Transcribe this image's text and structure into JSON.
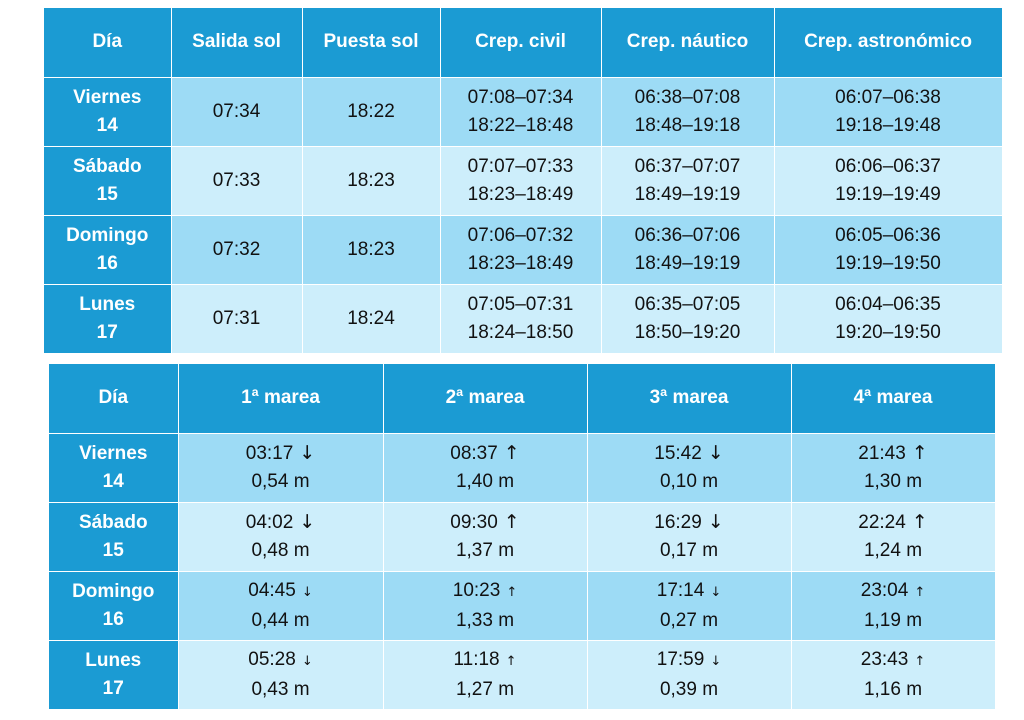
{
  "sun_table": {
    "headers": [
      "Día",
      "Salida sol",
      "Puesta sol",
      "Crep. civil",
      "Crep. náutico",
      "Crep. astronómico"
    ],
    "rows": [
      {
        "day_name": "Viernes",
        "day_num": "14",
        "sunrise": "07:34",
        "sunset": "18:22",
        "civil": [
          "07:08–07:34",
          "18:22–18:48"
        ],
        "nautical": [
          "06:38–07:08",
          "18:48–19:18"
        ],
        "astro": [
          "06:07–06:38",
          "19:18–19:48"
        ]
      },
      {
        "day_name": "Sábado",
        "day_num": "15",
        "sunrise": "07:33",
        "sunset": "18:23",
        "civil": [
          "07:07–07:33",
          "18:23–18:49"
        ],
        "nautical": [
          "06:37–07:07",
          "18:49–19:19"
        ],
        "astro": [
          "06:06–06:37",
          "19:19–19:49"
        ]
      },
      {
        "day_name": "Domingo",
        "day_num": "16",
        "sunrise": "07:32",
        "sunset": "18:23",
        "civil": [
          "07:06–07:32",
          "18:23–18:49"
        ],
        "nautical": [
          "06:36–07:06",
          "18:49–19:19"
        ],
        "astro": [
          "06:05–06:36",
          "19:19–19:50"
        ]
      },
      {
        "day_name": "Lunes",
        "day_num": "17",
        "sunrise": "07:31",
        "sunset": "18:24",
        "civil": [
          "07:05–07:31",
          "18:24–18:50"
        ],
        "nautical": [
          "06:35–07:05",
          "18:50–19:20"
        ],
        "astro": [
          "06:04–06:35",
          "19:20–19:50"
        ]
      }
    ]
  },
  "tide_table": {
    "headers": [
      "Día",
      "1ª marea",
      "2ª marea",
      "3ª marea",
      "4ª marea"
    ],
    "rows": [
      {
        "day_name": "Viernes",
        "day_num": "14",
        "tides": [
          {
            "time": "03:17",
            "arrow": "↓",
            "height": "0,54 m"
          },
          {
            "time": "08:37",
            "arrow": "↑",
            "height": "1,40 m"
          },
          {
            "time": "15:42",
            "arrow": "↓",
            "height": "0,10 m"
          },
          {
            "time": "21:43",
            "arrow": "↑",
            "height": "1,30 m"
          }
        ]
      },
      {
        "day_name": "Sábado",
        "day_num": "15",
        "tides": [
          {
            "time": "04:02",
            "arrow": "↓",
            "height": "0,48 m"
          },
          {
            "time": "09:30",
            "arrow": "↑",
            "height": "1,37 m"
          },
          {
            "time": "16:29",
            "arrow": "↓",
            "height": "0,17 m"
          },
          {
            "time": "22:24",
            "arrow": "↑",
            "height": "1,24 m"
          }
        ]
      },
      {
        "day_name": "Domingo",
        "day_num": "16",
        "tides": [
          {
            "time": "04:45",
            "arrow": "↓",
            "height": "0,44 m"
          },
          {
            "time": "10:23",
            "arrow": "↑",
            "height": "1,33 m"
          },
          {
            "time": "17:14",
            "arrow": "↓",
            "height": "0,27 m"
          },
          {
            "time": "23:04",
            "arrow": "↑",
            "height": "1,19 m"
          }
        ]
      },
      {
        "day_name": "Lunes",
        "day_num": "17",
        "tides": [
          {
            "time": "05:28",
            "arrow": "↓",
            "height": "0,43 m"
          },
          {
            "time": "11:18",
            "arrow": "↑",
            "height": "1,27 m"
          },
          {
            "time": "17:59",
            "arrow": "↓",
            "height": "0,39 m"
          },
          {
            "time": "23:43",
            "arrow": "↑",
            "height": "1,16 m"
          }
        ]
      }
    ]
  },
  "colors": {
    "header_blue": "#1b9bd3",
    "row_dark": "#9ddbf5",
    "row_light": "#cdeefb"
  }
}
